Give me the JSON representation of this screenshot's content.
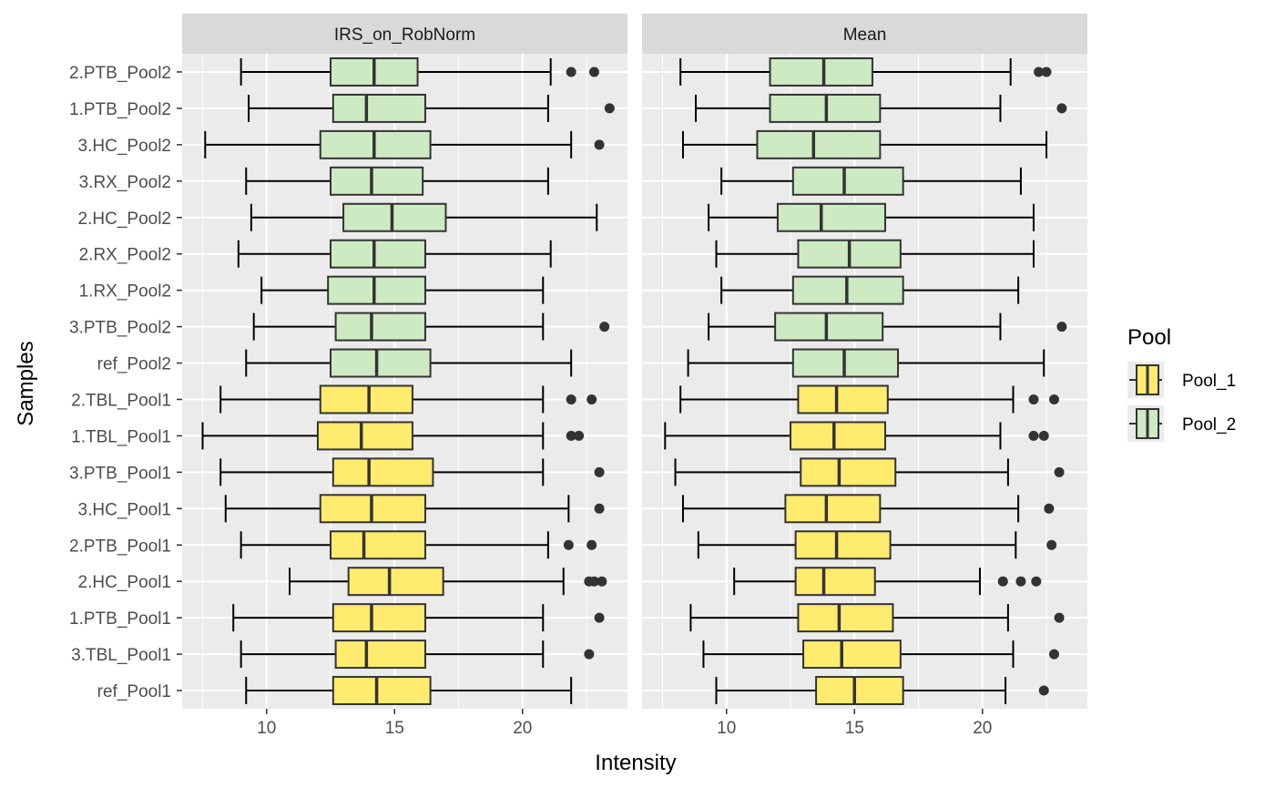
{
  "chart_data": {
    "type": "boxplot",
    "xlabel": "Intensity",
    "ylabel": "Samples",
    "x_ticks": [
      10,
      15,
      20
    ],
    "legend": {
      "title": "Pool",
      "position": "right",
      "entries": [
        {
          "name": "Pool_1",
          "color": "#FFEB6E"
        },
        {
          "name": "Pool_2",
          "color": "#CDEAC3"
        }
      ]
    },
    "grid": true,
    "samples": [
      "2.PTB_Pool2",
      "1.PTB_Pool2",
      "3.HC_Pool2",
      "3.RX_Pool2",
      "2.HC_Pool2",
      "2.RX_Pool2",
      "1.RX_Pool2",
      "3.PTB_Pool2",
      "ref_Pool2",
      "2.TBL_Pool1",
      "1.TBL_Pool1",
      "3.PTB_Pool1",
      "3.HC_Pool1",
      "2.PTB_Pool1",
      "2.HC_Pool1",
      "1.PTB_Pool1",
      "3.TBL_Pool1",
      "ref_Pool1"
    ],
    "pools": [
      "Pool_2",
      "Pool_2",
      "Pool_2",
      "Pool_2",
      "Pool_2",
      "Pool_2",
      "Pool_2",
      "Pool_2",
      "Pool_2",
      "Pool_1",
      "Pool_1",
      "Pool_1",
      "Pool_1",
      "Pool_1",
      "Pool_1",
      "Pool_1",
      "Pool_1",
      "Pool_1"
    ],
    "panels": [
      {
        "title": "IRS_on_RobNorm",
        "xlim": [
          6.7,
          24.1
        ],
        "boxes": [
          {
            "min": 9.0,
            "q1": 12.5,
            "median": 14.2,
            "q3": 15.9,
            "max": 21.1,
            "outliers": [
              21.9,
              22.8
            ]
          },
          {
            "min": 9.3,
            "q1": 12.6,
            "median": 13.9,
            "q3": 16.2,
            "max": 21.0,
            "outliers": [
              23.4
            ]
          },
          {
            "min": 7.6,
            "q1": 12.1,
            "median": 14.2,
            "q3": 16.4,
            "max": 21.9,
            "outliers": [
              23.0
            ]
          },
          {
            "min": 9.2,
            "q1": 12.5,
            "median": 14.1,
            "q3": 16.1,
            "max": 21.0,
            "outliers": []
          },
          {
            "min": 9.4,
            "q1": 13.0,
            "median": 14.9,
            "q3": 17.0,
            "max": 22.9,
            "outliers": []
          },
          {
            "min": 8.9,
            "q1": 12.5,
            "median": 14.2,
            "q3": 16.2,
            "max": 21.1,
            "outliers": []
          },
          {
            "min": 9.8,
            "q1": 12.4,
            "median": 14.2,
            "q3": 16.2,
            "max": 20.8,
            "outliers": []
          },
          {
            "min": 9.5,
            "q1": 12.7,
            "median": 14.1,
            "q3": 16.2,
            "max": 20.8,
            "outliers": [
              23.2
            ]
          },
          {
            "min": 9.2,
            "q1": 12.5,
            "median": 14.3,
            "q3": 16.4,
            "max": 21.9,
            "outliers": []
          },
          {
            "min": 8.2,
            "q1": 12.1,
            "median": 14.0,
            "q3": 15.7,
            "max": 20.8,
            "outliers": [
              21.9,
              22.7
            ]
          },
          {
            "min": 7.5,
            "q1": 12.0,
            "median": 13.7,
            "q3": 15.7,
            "max": 20.8,
            "outliers": [
              21.9,
              22.2
            ]
          },
          {
            "min": 8.2,
            "q1": 12.6,
            "median": 14.0,
            "q3": 16.5,
            "max": 20.8,
            "outliers": [
              23.0
            ]
          },
          {
            "min": 8.4,
            "q1": 12.1,
            "median": 14.1,
            "q3": 16.2,
            "max": 21.8,
            "outliers": [
              23.0
            ]
          },
          {
            "min": 9.0,
            "q1": 12.5,
            "median": 13.8,
            "q3": 16.2,
            "max": 21.0,
            "outliers": [
              21.8,
              22.7
            ]
          },
          {
            "min": 10.9,
            "q1": 13.2,
            "median": 14.8,
            "q3": 16.9,
            "max": 21.6,
            "outliers": [
              22.6,
              22.8,
              23.1
            ]
          },
          {
            "min": 8.7,
            "q1": 12.6,
            "median": 14.1,
            "q3": 16.2,
            "max": 20.8,
            "outliers": [
              23.0
            ]
          },
          {
            "min": 9.0,
            "q1": 12.7,
            "median": 13.9,
            "q3": 16.2,
            "max": 20.8,
            "outliers": [
              22.6
            ]
          },
          {
            "min": 9.2,
            "q1": 12.6,
            "median": 14.3,
            "q3": 16.4,
            "max": 21.9,
            "outliers": []
          }
        ]
      },
      {
        "title": "Mean",
        "xlim": [
          6.7,
          24.1
        ],
        "boxes": [
          {
            "min": 8.2,
            "q1": 11.7,
            "median": 13.8,
            "q3": 15.7,
            "max": 21.1,
            "outliers": [
              22.2,
              22.5
            ]
          },
          {
            "min": 8.8,
            "q1": 11.7,
            "median": 13.9,
            "q3": 16.0,
            "max": 20.7,
            "outliers": [
              23.1
            ]
          },
          {
            "min": 8.3,
            "q1": 11.2,
            "median": 13.4,
            "q3": 16.0,
            "max": 22.5,
            "outliers": []
          },
          {
            "min": 9.8,
            "q1": 12.6,
            "median": 14.6,
            "q3": 16.9,
            "max": 21.5,
            "outliers": []
          },
          {
            "min": 9.3,
            "q1": 12.0,
            "median": 13.7,
            "q3": 16.2,
            "max": 22.0,
            "outliers": []
          },
          {
            "min": 9.6,
            "q1": 12.8,
            "median": 14.8,
            "q3": 16.8,
            "max": 22.0,
            "outliers": []
          },
          {
            "min": 9.8,
            "q1": 12.6,
            "median": 14.7,
            "q3": 16.9,
            "max": 21.4,
            "outliers": []
          },
          {
            "min": 9.3,
            "q1": 11.9,
            "median": 13.9,
            "q3": 16.1,
            "max": 20.7,
            "outliers": [
              23.1
            ]
          },
          {
            "min": 8.5,
            "q1": 12.6,
            "median": 14.6,
            "q3": 16.7,
            "max": 22.4,
            "outliers": []
          },
          {
            "min": 8.2,
            "q1": 12.8,
            "median": 14.3,
            "q3": 16.3,
            "max": 21.2,
            "outliers": [
              22.0,
              22.8
            ]
          },
          {
            "min": 7.6,
            "q1": 12.5,
            "median": 14.2,
            "q3": 16.2,
            "max": 20.7,
            "outliers": [
              22.0,
              22.4
            ]
          },
          {
            "min": 8.0,
            "q1": 12.9,
            "median": 14.4,
            "q3": 16.6,
            "max": 21.0,
            "outliers": [
              23.0
            ]
          },
          {
            "min": 8.3,
            "q1": 12.3,
            "median": 13.9,
            "q3": 16.0,
            "max": 21.4,
            "outliers": [
              22.6
            ]
          },
          {
            "min": 8.9,
            "q1": 12.7,
            "median": 14.3,
            "q3": 16.4,
            "max": 21.3,
            "outliers": [
              22.7
            ]
          },
          {
            "min": 10.3,
            "q1": 12.7,
            "median": 13.8,
            "q3": 15.8,
            "max": 19.9,
            "outliers": [
              20.8,
              21.5,
              22.1
            ]
          },
          {
            "min": 8.6,
            "q1": 12.8,
            "median": 14.4,
            "q3": 16.5,
            "max": 21.0,
            "outliers": [
              23.0
            ]
          },
          {
            "min": 9.1,
            "q1": 13.0,
            "median": 14.5,
            "q3": 16.8,
            "max": 21.2,
            "outliers": [
              22.8
            ]
          },
          {
            "min": 9.6,
            "q1": 13.5,
            "median": 15.0,
            "q3": 16.9,
            "max": 20.9,
            "outliers": [
              22.4
            ]
          }
        ]
      }
    ]
  }
}
